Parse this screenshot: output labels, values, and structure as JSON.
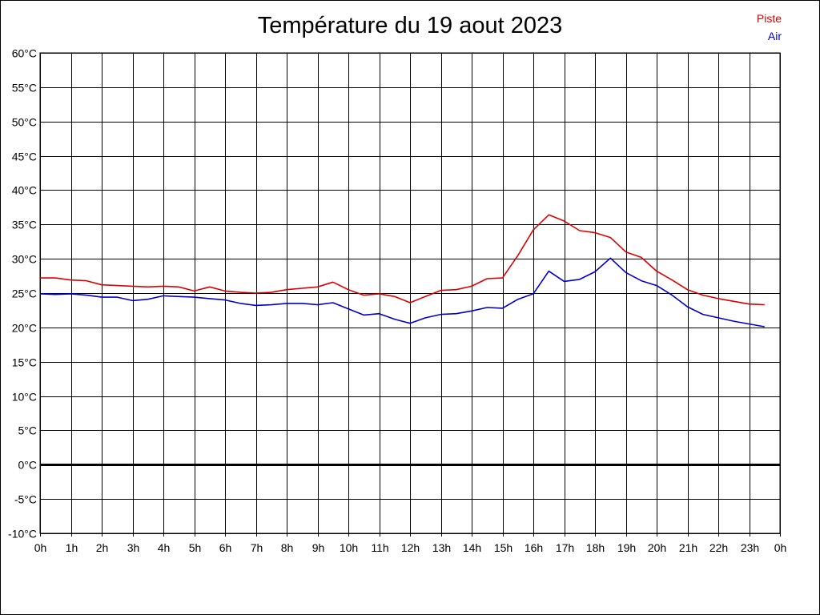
{
  "chart_data": {
    "type": "line",
    "title": "Température du 19 aout 2023",
    "xlabel": "",
    "ylabel": "",
    "ylim": [
      -10,
      60
    ],
    "xlim": [
      0,
      24
    ],
    "yticks": [
      {
        "value": 60,
        "label": "60°C"
      },
      {
        "value": 55,
        "label": "55°C"
      },
      {
        "value": 50,
        "label": "50°C"
      },
      {
        "value": 45,
        "label": "45°C"
      },
      {
        "value": 40,
        "label": "40°C"
      },
      {
        "value": 35,
        "label": "35°C"
      },
      {
        "value": 30,
        "label": "30°C"
      },
      {
        "value": 25,
        "label": "25°C"
      },
      {
        "value": 20,
        "label": "20°C"
      },
      {
        "value": 15,
        "label": "15°C"
      },
      {
        "value": 10,
        "label": "10°C"
      },
      {
        "value": 5,
        "label": "5°C"
      },
      {
        "value": 0,
        "label": "0°C"
      },
      {
        "value": -5,
        "label": "-5°C"
      },
      {
        "value": -10,
        "label": "-10°C"
      }
    ],
    "xticks": [
      {
        "value": 0,
        "label": "0h"
      },
      {
        "value": 1,
        "label": "1h"
      },
      {
        "value": 2,
        "label": "2h"
      },
      {
        "value": 3,
        "label": "3h"
      },
      {
        "value": 4,
        "label": "4h"
      },
      {
        "value": 5,
        "label": "5h"
      },
      {
        "value": 6,
        "label": "6h"
      },
      {
        "value": 7,
        "label": "7h"
      },
      {
        "value": 8,
        "label": "8h"
      },
      {
        "value": 9,
        "label": "9h"
      },
      {
        "value": 10,
        "label": "10h"
      },
      {
        "value": 11,
        "label": "11h"
      },
      {
        "value": 12,
        "label": "12h"
      },
      {
        "value": 13,
        "label": "13h"
      },
      {
        "value": 14,
        "label": "14h"
      },
      {
        "value": 15,
        "label": "15h"
      },
      {
        "value": 16,
        "label": "16h"
      },
      {
        "value": 17,
        "label": "17h"
      },
      {
        "value": 18,
        "label": "18h"
      },
      {
        "value": 19,
        "label": "19h"
      },
      {
        "value": 20,
        "label": "20h"
      },
      {
        "value": 21,
        "label": "21h"
      },
      {
        "value": 22,
        "label": "22h"
      },
      {
        "value": 23,
        "label": "23h"
      },
      {
        "value": 24,
        "label": "0h"
      }
    ],
    "grid": true,
    "legend_position": "top-right",
    "x": [
      0,
      0.5,
      1,
      1.5,
      2,
      2.5,
      3,
      3.5,
      4,
      4.5,
      5,
      5.5,
      6,
      6.5,
      7,
      7.5,
      8,
      8.5,
      9,
      9.5,
      10,
      10.5,
      11,
      11.5,
      12,
      12.5,
      13,
      13.5,
      14,
      14.5,
      15,
      15.5,
      16,
      16.5,
      17,
      17.5,
      18,
      18.5,
      19,
      19.5,
      20,
      20.5,
      21,
      21.5,
      22,
      22.5,
      23,
      23.5
    ],
    "series": [
      {
        "name": "Piste",
        "color": "#dd0000",
        "values": [
          27.2,
          27.2,
          26.9,
          26.8,
          26.2,
          26.1,
          26.0,
          25.9,
          26.0,
          25.9,
          25.3,
          25.9,
          25.3,
          25.1,
          25.0,
          25.1,
          25.5,
          25.7,
          25.9,
          26.6,
          25.5,
          24.7,
          24.9,
          24.5,
          23.6,
          24.5,
          25.4,
          25.5,
          26.0,
          27.1,
          27.2,
          30.5,
          34.2,
          36.4,
          35.5,
          34.1,
          33.8,
          33.1,
          31.0,
          30.2,
          28.2,
          26.9,
          25.5,
          24.7,
          24.2,
          23.8,
          23.4,
          23.3
        ]
      },
      {
        "name": "Air",
        "color": "#0000cc",
        "values": [
          24.9,
          24.8,
          24.9,
          24.7,
          24.4,
          24.4,
          23.9,
          24.1,
          24.6,
          24.5,
          24.4,
          24.2,
          24.0,
          23.5,
          23.2,
          23.3,
          23.5,
          23.5,
          23.3,
          23.6,
          22.7,
          21.8,
          22.0,
          21.2,
          20.6,
          21.4,
          21.9,
          22.0,
          22.4,
          22.9,
          22.8,
          24.1,
          24.9,
          28.2,
          26.7,
          27.0,
          28.1,
          30.1,
          28.0,
          26.8,
          26.1,
          24.7,
          23.0,
          21.9,
          21.4,
          20.9,
          20.5,
          20.1
        ]
      }
    ]
  }
}
